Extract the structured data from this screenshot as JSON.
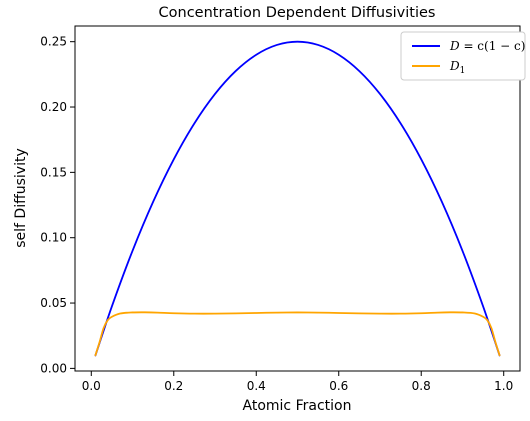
{
  "chart_data": {
    "type": "line",
    "title": "Concentration Dependent Diffusivities",
    "xlabel": "Atomic Fraction",
    "ylabel": "self Diffusivity",
    "xlim": [
      -0.0395,
      1.0395
    ],
    "ylim": [
      -0.002,
      0.262
    ],
    "xticks": [
      0.0,
      0.2,
      0.4,
      0.6,
      0.8,
      1.0
    ],
    "xtick_labels": [
      "0.0",
      "0.2",
      "0.4",
      "0.6",
      "0.8",
      "1.0"
    ],
    "yticks": [
      0.0,
      0.05,
      0.1,
      0.15,
      0.2,
      0.25
    ],
    "ytick_labels": [
      "0.00",
      "0.05",
      "0.10",
      "0.15",
      "0.20",
      "0.25"
    ],
    "grid": false,
    "legend": {
      "placement": "top-right"
    },
    "series": [
      {
        "name": "D = c(1 − c)",
        "legend_main": "D",
        "legend_rest": " = c(1 − c)",
        "color": "#0000ff",
        "x": [
          0.01,
          0.05,
          0.1,
          0.15,
          0.2,
          0.25,
          0.3,
          0.35,
          0.4,
          0.45,
          0.5,
          0.55,
          0.6,
          0.65,
          0.7,
          0.75,
          0.8,
          0.85,
          0.9,
          0.95,
          0.99
        ],
        "y": [
          0.0099,
          0.0475,
          0.09,
          0.1275,
          0.16,
          0.1875,
          0.21,
          0.2275,
          0.24,
          0.2475,
          0.25,
          0.2475,
          0.24,
          0.2275,
          0.21,
          0.1875,
          0.16,
          0.1275,
          0.09,
          0.0475,
          0.0099
        ]
      },
      {
        "name": "D1",
        "legend_main": "D",
        "legend_sub": "1",
        "color": "#ffa500",
        "x": [
          0.01,
          0.02,
          0.03,
          0.04,
          0.05,
          0.07,
          0.1,
          0.13,
          0.16,
          0.2,
          0.25,
          0.3,
          0.35,
          0.4,
          0.45,
          0.5,
          0.55,
          0.6,
          0.65,
          0.7,
          0.75,
          0.8,
          0.84,
          0.87,
          0.9,
          0.93,
          0.95,
          0.96,
          0.97,
          0.98,
          0.99
        ],
        "y": [
          0.01,
          0.02,
          0.031,
          0.037,
          0.0395,
          0.042,
          0.0428,
          0.0429,
          0.0427,
          0.0422,
          0.0419,
          0.0419,
          0.0421,
          0.0424,
          0.0427,
          0.0428,
          0.0427,
          0.0424,
          0.0421,
          0.0419,
          0.0419,
          0.0422,
          0.0427,
          0.0429,
          0.0428,
          0.042,
          0.0395,
          0.037,
          0.031,
          0.02,
          0.01
        ]
      }
    ]
  }
}
